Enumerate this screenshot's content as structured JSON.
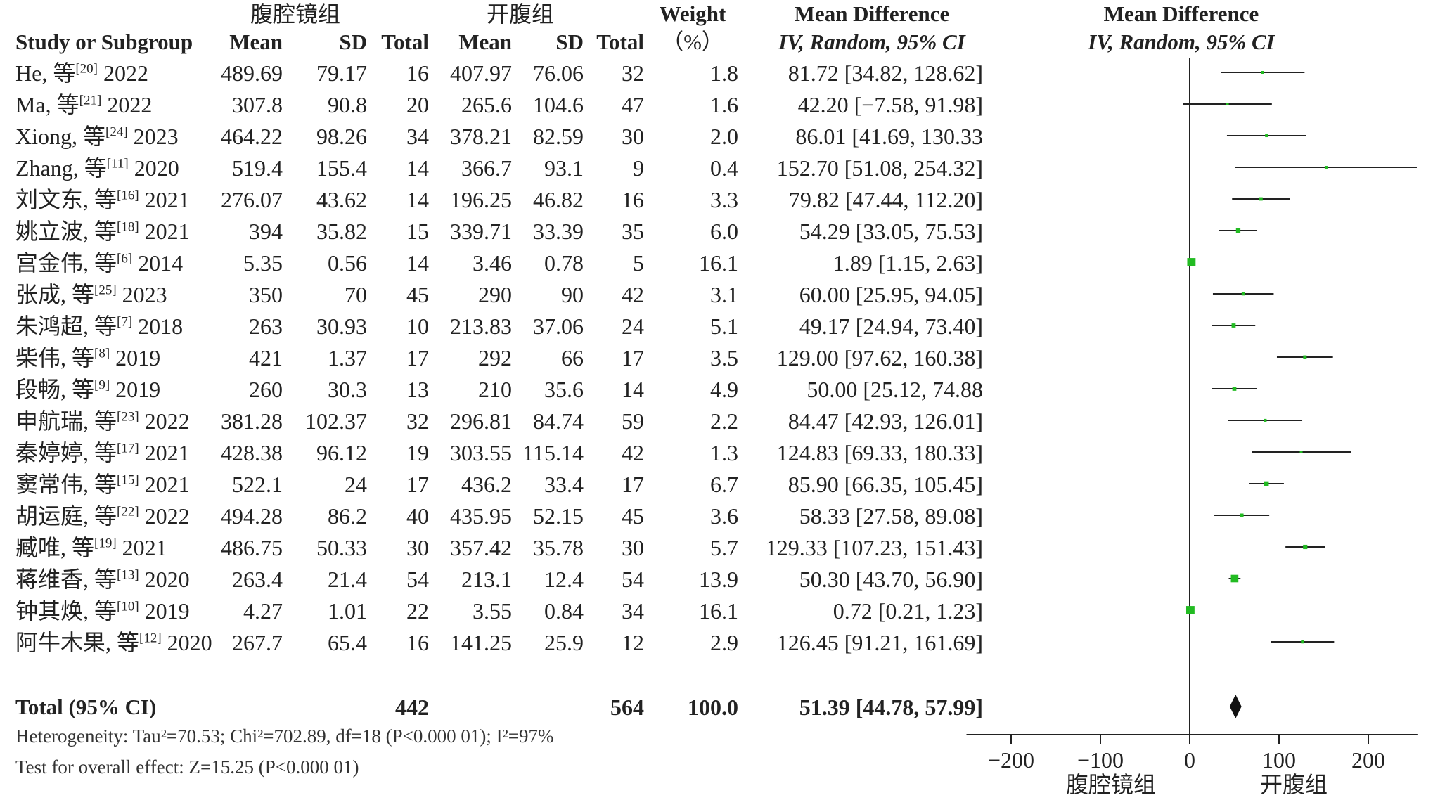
{
  "header": {
    "group1": "腹腔镜组",
    "group2": "开腹组",
    "study_col": "Study or Subgroup",
    "mean": "Mean",
    "sd": "SD",
    "total": "Total",
    "weight": "Weight",
    "weight_unit": "（%）",
    "md_title": "Mean Difference",
    "md_method": "IV, Random, 95% CI",
    "plot_title": "Mean Difference",
    "plot_method": "IV, Random, 95% CI"
  },
  "total_row": {
    "label": "Total (95% CI)",
    "n1": "442",
    "n2": "564",
    "weight": "100.0",
    "ci": "51.39 [44.78, 57.99]"
  },
  "footer": {
    "heterogeneity": "Heterogeneity: Tau²=70.53; Chi²=702.89, df=18 (P<0.000 01); I²=97%",
    "overall": "Test for overall effect: Z=15.25 (P<0.000 01)"
  },
  "axis": {
    "ticks": [
      "−200",
      "−100",
      "0",
      "100",
      "200"
    ],
    "favours_left": "腹腔镜组",
    "favours_right": "开腹组"
  },
  "colors": {
    "point": "#22bb22",
    "line": "#222222",
    "diamond": "#111111"
  },
  "chart_data": {
    "type": "forest",
    "xlim": [
      -250,
      255
    ],
    "pooled": {
      "md": 51.39,
      "low": 44.78,
      "high": 57.99
    },
    "rows": [
      {
        "name": "He, 等",
        "ref": "[20]",
        "year": "2022",
        "m1": "489.69",
        "sd1": "79.17",
        "n1": "16",
        "m2": "407.97",
        "sd2": "76.06",
        "n2": "32",
        "weight": "1.8",
        "ci": "81.72 [34.82, 128.62]",
        "md": 81.72,
        "low": 34.82,
        "high": 128.62
      },
      {
        "name": "Ma, 等",
        "ref": "[21]",
        "year": "2022",
        "m1": "307.8",
        "sd1": "90.8",
        "n1": "20",
        "m2": "265.6",
        "sd2": "104.6",
        "n2": "47",
        "weight": "1.6",
        "ci": "42.20 [−7.58, 91.98]",
        "md": 42.2,
        "low": -7.58,
        "high": 91.98
      },
      {
        "name": "Xiong, 等",
        "ref": "[24]",
        "year": "2023",
        "m1": "464.22",
        "sd1": "98.26",
        "n1": "34",
        "m2": "378.21",
        "sd2": "82.59",
        "n2": "30",
        "weight": "2.0",
        "ci": "86.01 [41.69, 130.33",
        "md": 86.01,
        "low": 41.69,
        "high": 130.33
      },
      {
        "name": "Zhang, 等",
        "ref": "[11]",
        "year": "2020",
        "m1": "519.4",
        "sd1": "155.4",
        "n1": "14",
        "m2": "366.7",
        "sd2": "93.1",
        "n2": "9",
        "weight": "0.4",
        "ci": "152.70 [51.08, 254.32]",
        "md": 152.7,
        "low": 51.08,
        "high": 254.32
      },
      {
        "name": "刘文东, 等",
        "ref": "[16]",
        "year": "2021",
        "m1": "276.07",
        "sd1": "43.62",
        "n1": "14",
        "m2": "196.25",
        "sd2": "46.82",
        "n2": "16",
        "weight": "3.3",
        "ci": "79.82 [47.44, 112.20]",
        "md": 79.82,
        "low": 47.44,
        "high": 112.2
      },
      {
        "name": "姚立波, 等",
        "ref": "[18]",
        "year": "2021",
        "m1": "394",
        "sd1": "35.82",
        "n1": "15",
        "m2": "339.71",
        "sd2": "33.39",
        "n2": "35",
        "weight": "6.0",
        "ci": "54.29 [33.05, 75.53]",
        "md": 54.29,
        "low": 33.05,
        "high": 75.53
      },
      {
        "name": "宫金伟, 等",
        "ref": "[6]",
        "year": "2014",
        "m1": "5.35",
        "sd1": "0.56",
        "n1": "14",
        "m2": "3.46",
        "sd2": "0.78",
        "n2": "5",
        "weight": "16.1",
        "ci": "1.89 [1.15, 2.63]",
        "md": 1.89,
        "low": 1.15,
        "high": 2.63
      },
      {
        "name": "张成, 等",
        "ref": "[25]",
        "year": "2023",
        "m1": "350",
        "sd1": "70",
        "n1": "45",
        "m2": "290",
        "sd2": "90",
        "n2": "42",
        "weight": "3.1",
        "ci": "60.00 [25.95, 94.05]",
        "md": 60.0,
        "low": 25.95,
        "high": 94.05
      },
      {
        "name": "朱鸿超, 等",
        "ref": "[7]",
        "year": "2018",
        "m1": "263",
        "sd1": "30.93",
        "n1": "10",
        "m2": "213.83",
        "sd2": "37.06",
        "n2": "24",
        "weight": "5.1",
        "ci": "49.17 [24.94, 73.40]",
        "md": 49.17,
        "low": 24.94,
        "high": 73.4
      },
      {
        "name": "柴伟, 等",
        "ref": "[8]",
        "year": "2019",
        "m1": "421",
        "sd1": "1.37",
        "n1": "17",
        "m2": "292",
        "sd2": "66",
        "n2": "17",
        "weight": "3.5",
        "ci": "129.00 [97.62, 160.38]",
        "md": 129.0,
        "low": 97.62,
        "high": 160.38
      },
      {
        "name": "段畅, 等",
        "ref": "[9]",
        "year": "2019",
        "m1": "260",
        "sd1": "30.3",
        "n1": "13",
        "m2": "210",
        "sd2": "35.6",
        "n2": "14",
        "weight": "4.9",
        "ci": "50.00 [25.12, 74.88",
        "md": 50.0,
        "low": 25.12,
        "high": 74.88
      },
      {
        "name": "申航瑞, 等",
        "ref": "[23]",
        "year": "2022",
        "m1": "381.28",
        "sd1": "102.37",
        "n1": "32",
        "m2": "296.81",
        "sd2": "84.74",
        "n2": "59",
        "weight": "2.2",
        "ci": "84.47 [42.93, 126.01]",
        "md": 84.47,
        "low": 42.93,
        "high": 126.01
      },
      {
        "name": "秦婷婷, 等",
        "ref": "[17]",
        "year": "2021",
        "m1": "428.38",
        "sd1": "96.12",
        "n1": "19",
        "m2": "303.55",
        "sd2": "115.14",
        "n2": "42",
        "weight": "1.3",
        "ci": "124.83 [69.33, 180.33]",
        "md": 124.83,
        "low": 69.33,
        "high": 180.33
      },
      {
        "name": "窦常伟, 等",
        "ref": "[15]",
        "year": "2021",
        "m1": "522.1",
        "sd1": "24",
        "n1": "17",
        "m2": "436.2",
        "sd2": "33.4",
        "n2": "17",
        "weight": "6.7",
        "ci": "85.90 [66.35, 105.45]",
        "md": 85.9,
        "low": 66.35,
        "high": 105.45
      },
      {
        "name": "胡运庭, 等",
        "ref": "[22]",
        "year": "2022",
        "m1": "494.28",
        "sd1": "86.2",
        "n1": "40",
        "m2": "435.95",
        "sd2": "52.15",
        "n2": "45",
        "weight": "3.6",
        "ci": "58.33 [27.58, 89.08]",
        "md": 58.33,
        "low": 27.58,
        "high": 89.08
      },
      {
        "name": "臧唯, 等",
        "ref": "[19]",
        "year": "2021",
        "m1": "486.75",
        "sd1": "50.33",
        "n1": "30",
        "m2": "357.42",
        "sd2": "35.78",
        "n2": "30",
        "weight": "5.7",
        "ci": "129.33 [107.23, 151.43]",
        "md": 129.33,
        "low": 107.23,
        "high": 151.43
      },
      {
        "name": "蒋维香, 等",
        "ref": "[13]",
        "year": "2020",
        "m1": "263.4",
        "sd1": "21.4",
        "n1": "54",
        "m2": "213.1",
        "sd2": "12.4",
        "n2": "54",
        "weight": "13.9",
        "ci": "50.30 [43.70, 56.90]",
        "md": 50.3,
        "low": 43.7,
        "high": 56.9
      },
      {
        "name": "钟其焕, 等",
        "ref": "[10]",
        "year": "2019",
        "m1": "4.27",
        "sd1": "1.01",
        "n1": "22",
        "m2": "3.55",
        "sd2": "0.84",
        "n2": "34",
        "weight": "16.1",
        "ci": "0.72 [0.21, 1.23]",
        "md": 0.72,
        "low": 0.21,
        "high": 1.23
      },
      {
        "name": "阿牛木果, 等",
        "ref": "[12]",
        "year": "2020",
        "m1": "267.7",
        "sd1": "65.4",
        "n1": "16",
        "m2": "141.25",
        "sd2": "25.9",
        "n2": "12",
        "weight": "2.9",
        "ci": "126.45 [91.21, 161.69]",
        "md": 126.45,
        "low": 91.21,
        "high": 161.69
      }
    ]
  }
}
